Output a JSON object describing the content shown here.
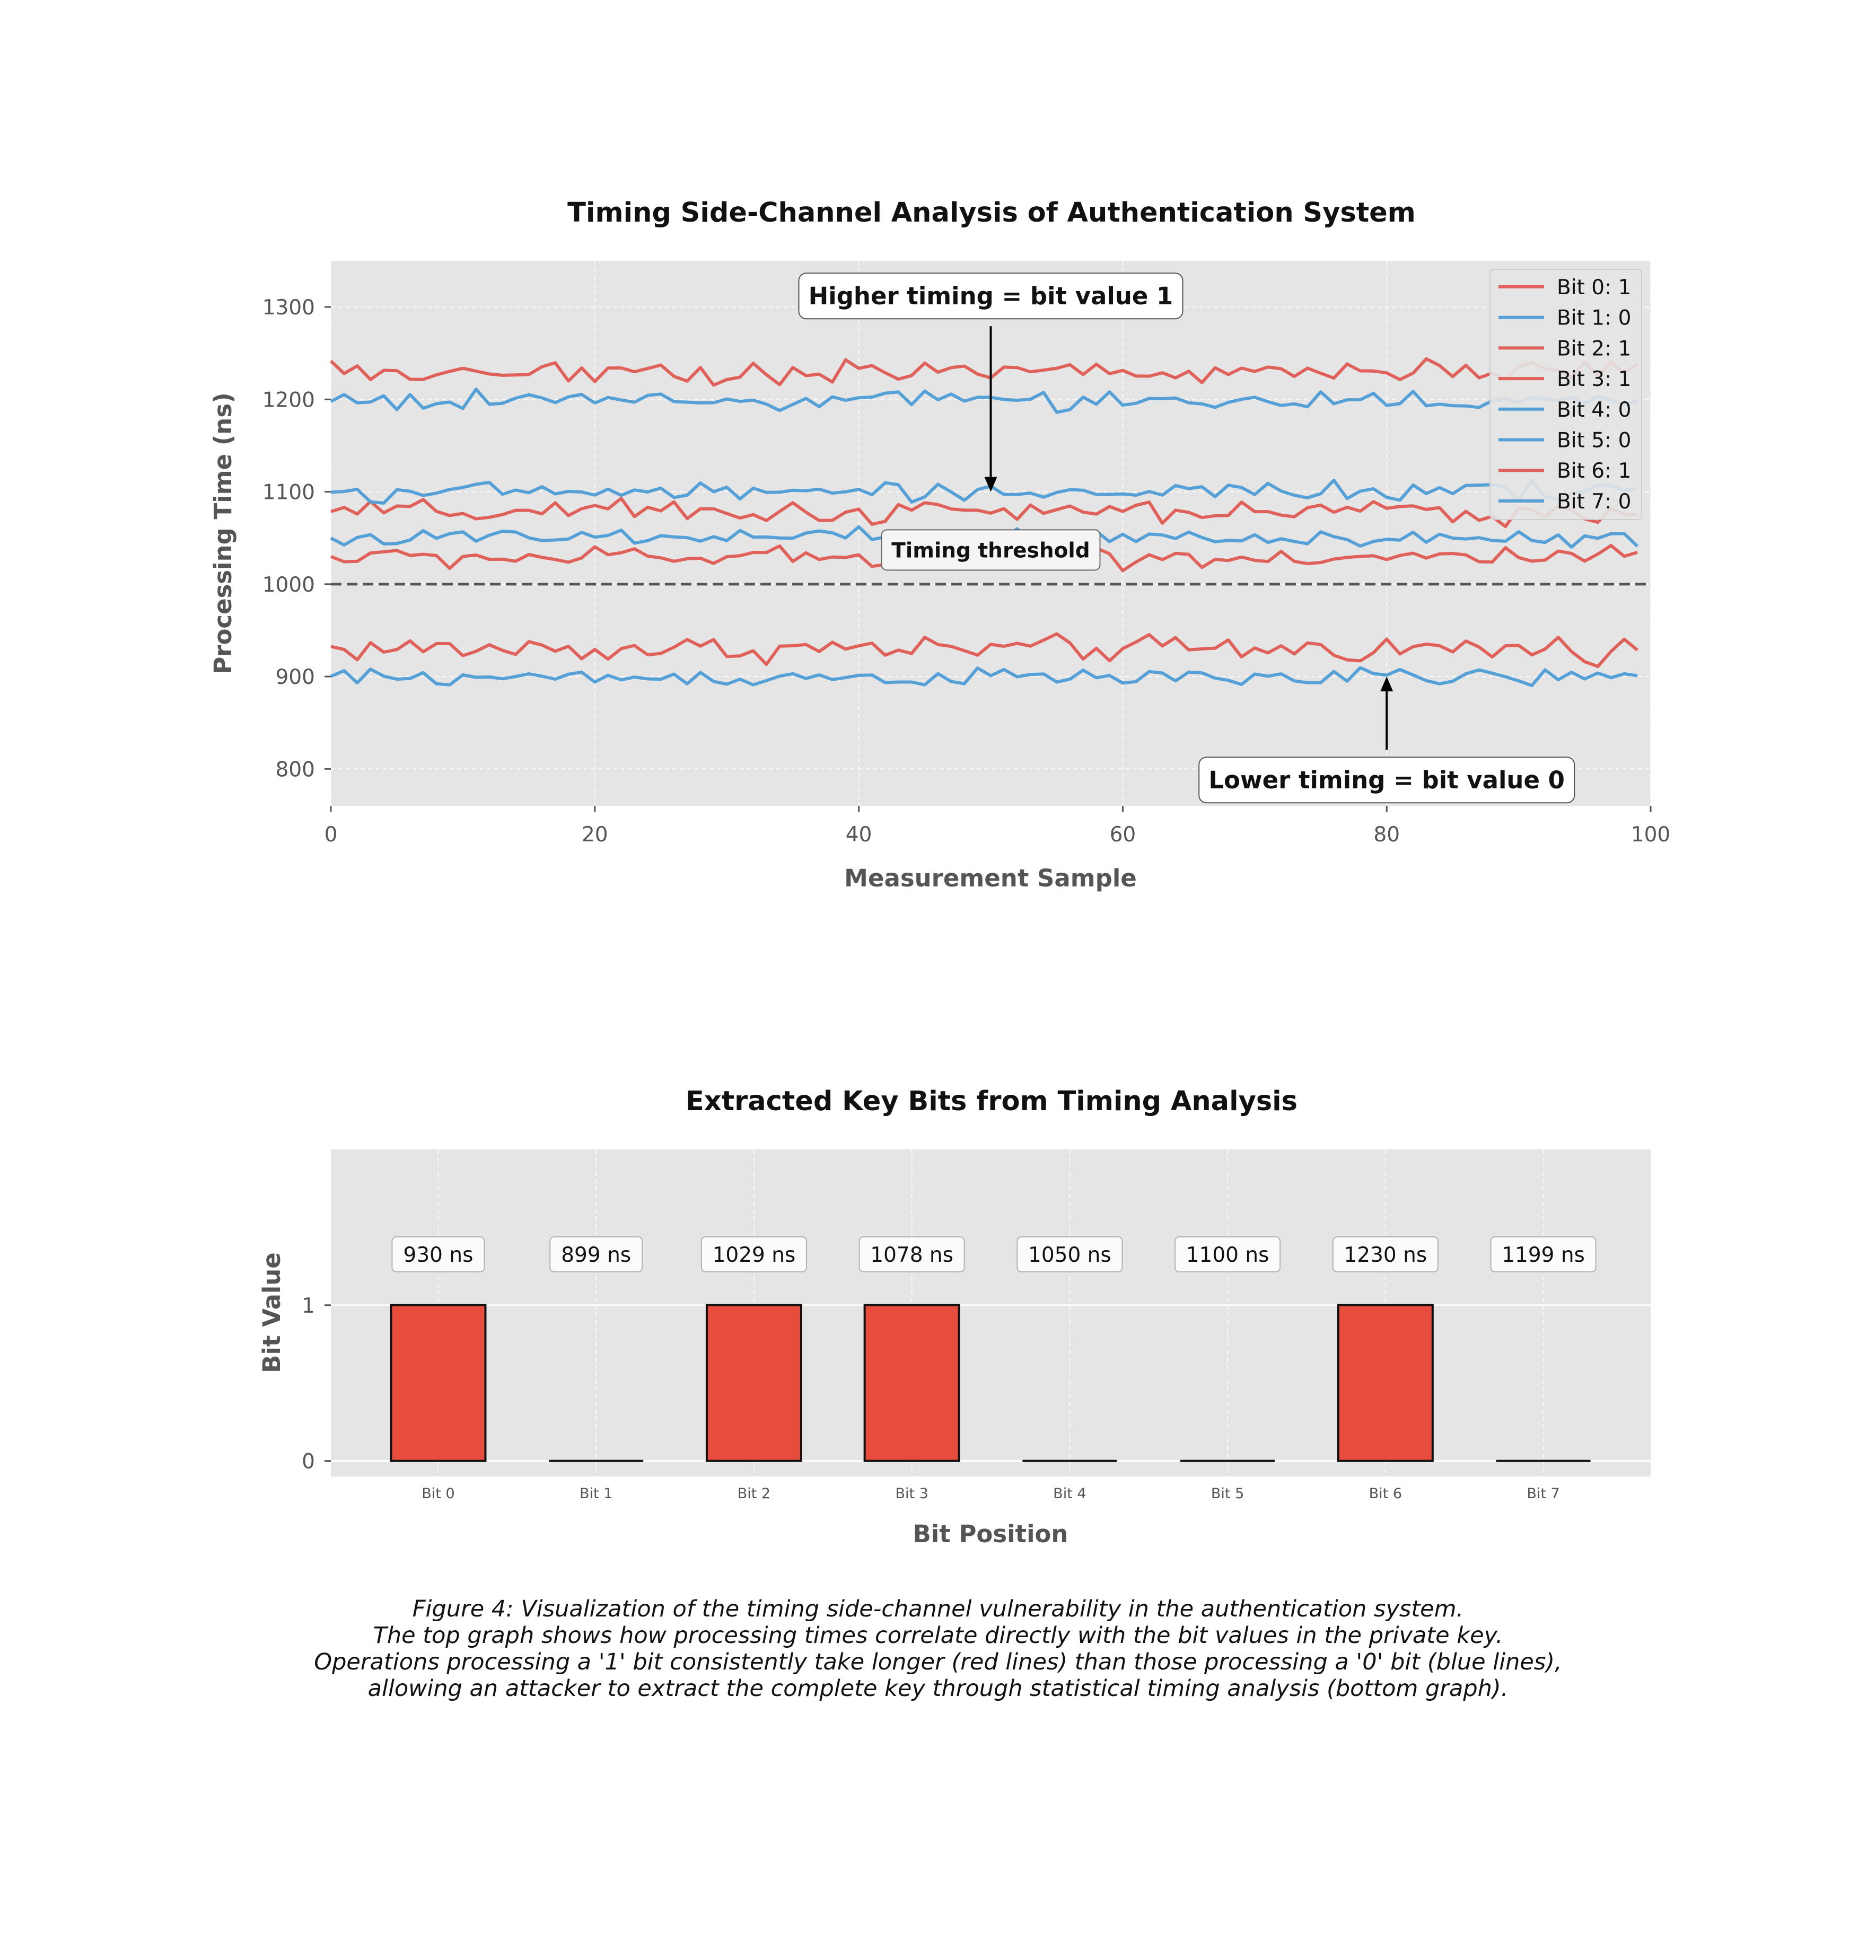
{
  "chart_data": [
    {
      "type": "line",
      "title": "Timing Side-Channel Analysis of Authentication System",
      "xlabel": "Measurement Sample",
      "ylabel": "Processing Time (ns)",
      "xlim": [
        0,
        100
      ],
      "ylim": [
        760,
        1350
      ],
      "xticks": [
        0,
        20,
        40,
        60,
        80,
        100
      ],
      "yticks": [
        800,
        900,
        1000,
        1100,
        1200,
        1300
      ],
      "grid": true,
      "legend_position": "top-right",
      "threshold": {
        "value": 1000,
        "label": "Timing threshold",
        "style": "dashed"
      },
      "annotations": [
        {
          "text": "Higher timing = bit value 1",
          "x": 50,
          "y": 1312,
          "arrow_to": {
            "x": 50,
            "y": 1100
          }
        },
        {
          "text": "Lower timing = bit value 0",
          "x": 80,
          "y": 788,
          "arrow_to": {
            "x": 80,
            "y": 900
          }
        }
      ],
      "samples": 100,
      "series": [
        {
          "name": "Bit 0: 1",
          "bit": 1,
          "color": "#e0605a",
          "mean": 930,
          "jitter": 9
        },
        {
          "name": "Bit 1: 0",
          "bit": 0,
          "color": "#56a0d8",
          "mean": 899,
          "jitter": 6
        },
        {
          "name": "Bit 2: 1",
          "bit": 1,
          "color": "#e0605a",
          "mean": 1029,
          "jitter": 7
        },
        {
          "name": "Bit 3: 1",
          "bit": 1,
          "color": "#e0605a",
          "mean": 1078,
          "jitter": 8
        },
        {
          "name": "Bit 4: 0",
          "bit": 0,
          "color": "#56a0d8",
          "mean": 1050,
          "jitter": 6
        },
        {
          "name": "Bit 5: 0",
          "bit": 0,
          "color": "#56a0d8",
          "mean": 1100,
          "jitter": 6
        },
        {
          "name": "Bit 6: 1",
          "bit": 1,
          "color": "#e0605a",
          "mean": 1230,
          "jitter": 8
        },
        {
          "name": "Bit 7: 0",
          "bit": 0,
          "color": "#56a0d8",
          "mean": 1199,
          "jitter": 6
        }
      ]
    },
    {
      "type": "bar",
      "title": "Extracted Key Bits from Timing Analysis",
      "xlabel": "Bit Position",
      "ylabel": "Bit Value",
      "ylim": [
        -0.1,
        2
      ],
      "yticks": [
        0,
        1
      ],
      "categories": [
        "Bit 0",
        "Bit 1",
        "Bit 2",
        "Bit 3",
        "Bit 4",
        "Bit 5",
        "Bit 6",
        "Bit 7"
      ],
      "values": [
        1,
        0,
        1,
        1,
        0,
        0,
        1,
        0
      ],
      "labels": [
        "930 ns",
        "899 ns",
        "1029 ns",
        "1078 ns",
        "1050 ns",
        "1100 ns",
        "1230 ns",
        "1199 ns"
      ],
      "bar_color": "#e74c3c"
    }
  ],
  "caption": [
    "Figure 4: Visualization of the timing side-channel vulnerability in the authentication system.",
    "The top graph shows how processing times correlate directly with the bit values in the private key.",
    "Operations processing a '1' bit consistently take longer (red lines) than those processing a '0' bit (blue lines),",
    "allowing an attacker to extract the complete key through statistical timing analysis (bottom graph)."
  ]
}
